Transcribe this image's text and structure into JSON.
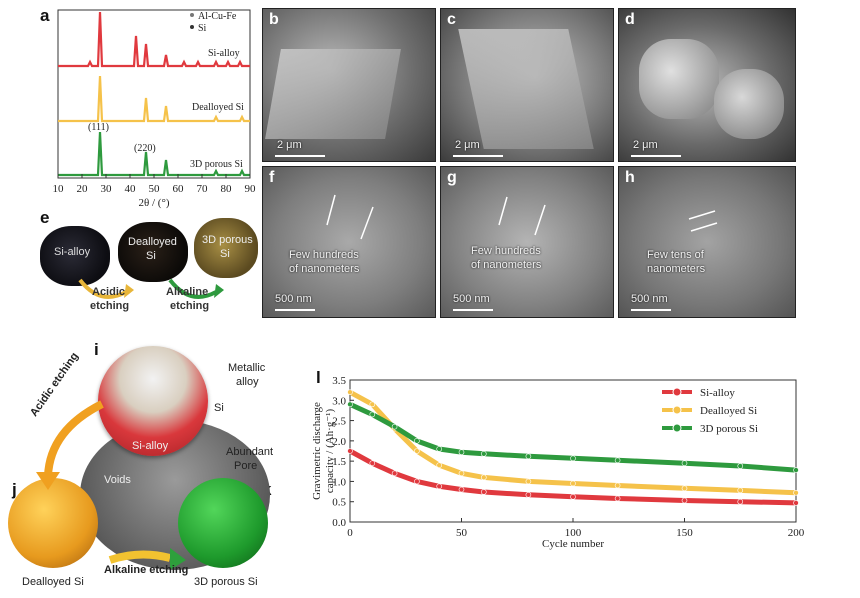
{
  "panels": {
    "a": "a",
    "b": "b",
    "c": "c",
    "d": "d",
    "e": "e",
    "f": "f",
    "g": "g",
    "h": "h",
    "i": "i",
    "j": "j",
    "k": "k",
    "l": "l"
  },
  "xrd": {
    "legend_alcufe": "Al-Cu-Fe",
    "legend_si": "Si",
    "label_sialloy": "Si-alloy",
    "label_dealloyed": "Dealloyed Si",
    "label_3d": "3D porous Si",
    "peak_111": "(111)",
    "peak_220": "(220)",
    "xlabel": "2θ / (°)",
    "xticks": [
      "10",
      "20",
      "30",
      "40",
      "50",
      "60",
      "70",
      "80",
      "90"
    ],
    "colors": {
      "sialloy": "#e0393e",
      "dealloyed": "#f5c24a",
      "porous": "#2e9a3e"
    }
  },
  "sem": {
    "scale_2um": "2 μm",
    "scale_500nm": "500 nm",
    "f_text_1": "Few hundreds",
    "f_text_2": "of nanometers",
    "g_text_1": "Few hundreds",
    "g_text_2": "of nanometers",
    "h_text_1": "Few tens of",
    "h_text_2": "nanometers"
  },
  "photos": {
    "sialloy": "Si-alloy",
    "dealloyed_1": "Dealloyed",
    "dealloyed_2": "Si",
    "porous_1": "3D porous",
    "porous_2": "Si",
    "acidic_1": "Acidic",
    "acidic_2": "etching",
    "alkaline_1": "Alkaline",
    "alkaline_2": "etching"
  },
  "scheme": {
    "metallic_1": "Metallic",
    "metallic_2": "alloy",
    "si": "Si",
    "sialloy": "Si-alloy",
    "abundant": "Abundant",
    "pore": "Pore",
    "voids": "Voids",
    "acidic": "Acidic etching",
    "alkaline": "Alkaline etching",
    "dealloyed": "Dealloyed Si",
    "porous": "3D porous Si"
  },
  "chart_data": {
    "type": "line",
    "xlabel": "Cycle number",
    "ylabel_1": "Gravimetric discharge",
    "ylabel_2": "capacity / (Ah·g⁻¹)",
    "xlim": [
      0,
      200
    ],
    "ylim": [
      0,
      3.5
    ],
    "xticks": [
      0,
      50,
      100,
      150,
      200
    ],
    "yticks": [
      0.0,
      0.5,
      1.0,
      1.5,
      2.0,
      2.5,
      3.0,
      3.5
    ],
    "legend_position": "top-right",
    "series": [
      {
        "name": "Si-alloy",
        "color": "#e0393e",
        "x": [
          0,
          10,
          20,
          30,
          40,
          50,
          60,
          80,
          100,
          120,
          150,
          175,
          200
        ],
        "y": [
          1.75,
          1.45,
          1.2,
          1.0,
          0.88,
          0.8,
          0.74,
          0.67,
          0.62,
          0.58,
          0.53,
          0.5,
          0.47
        ]
      },
      {
        "name": "Dealloyed Si",
        "color": "#f5c24a",
        "x": [
          0,
          10,
          20,
          30,
          40,
          50,
          60,
          80,
          100,
          120,
          150,
          175,
          200
        ],
        "y": [
          3.2,
          2.9,
          2.3,
          1.75,
          1.4,
          1.2,
          1.1,
          1.0,
          0.95,
          0.9,
          0.83,
          0.78,
          0.72
        ]
      },
      {
        "name": "3D porous Si",
        "color": "#2e9a3e",
        "x": [
          0,
          10,
          20,
          30,
          40,
          50,
          60,
          80,
          100,
          120,
          150,
          175,
          200
        ],
        "y": [
          2.9,
          2.65,
          2.35,
          2.0,
          1.8,
          1.72,
          1.68,
          1.62,
          1.57,
          1.52,
          1.45,
          1.38,
          1.28
        ]
      }
    ]
  }
}
